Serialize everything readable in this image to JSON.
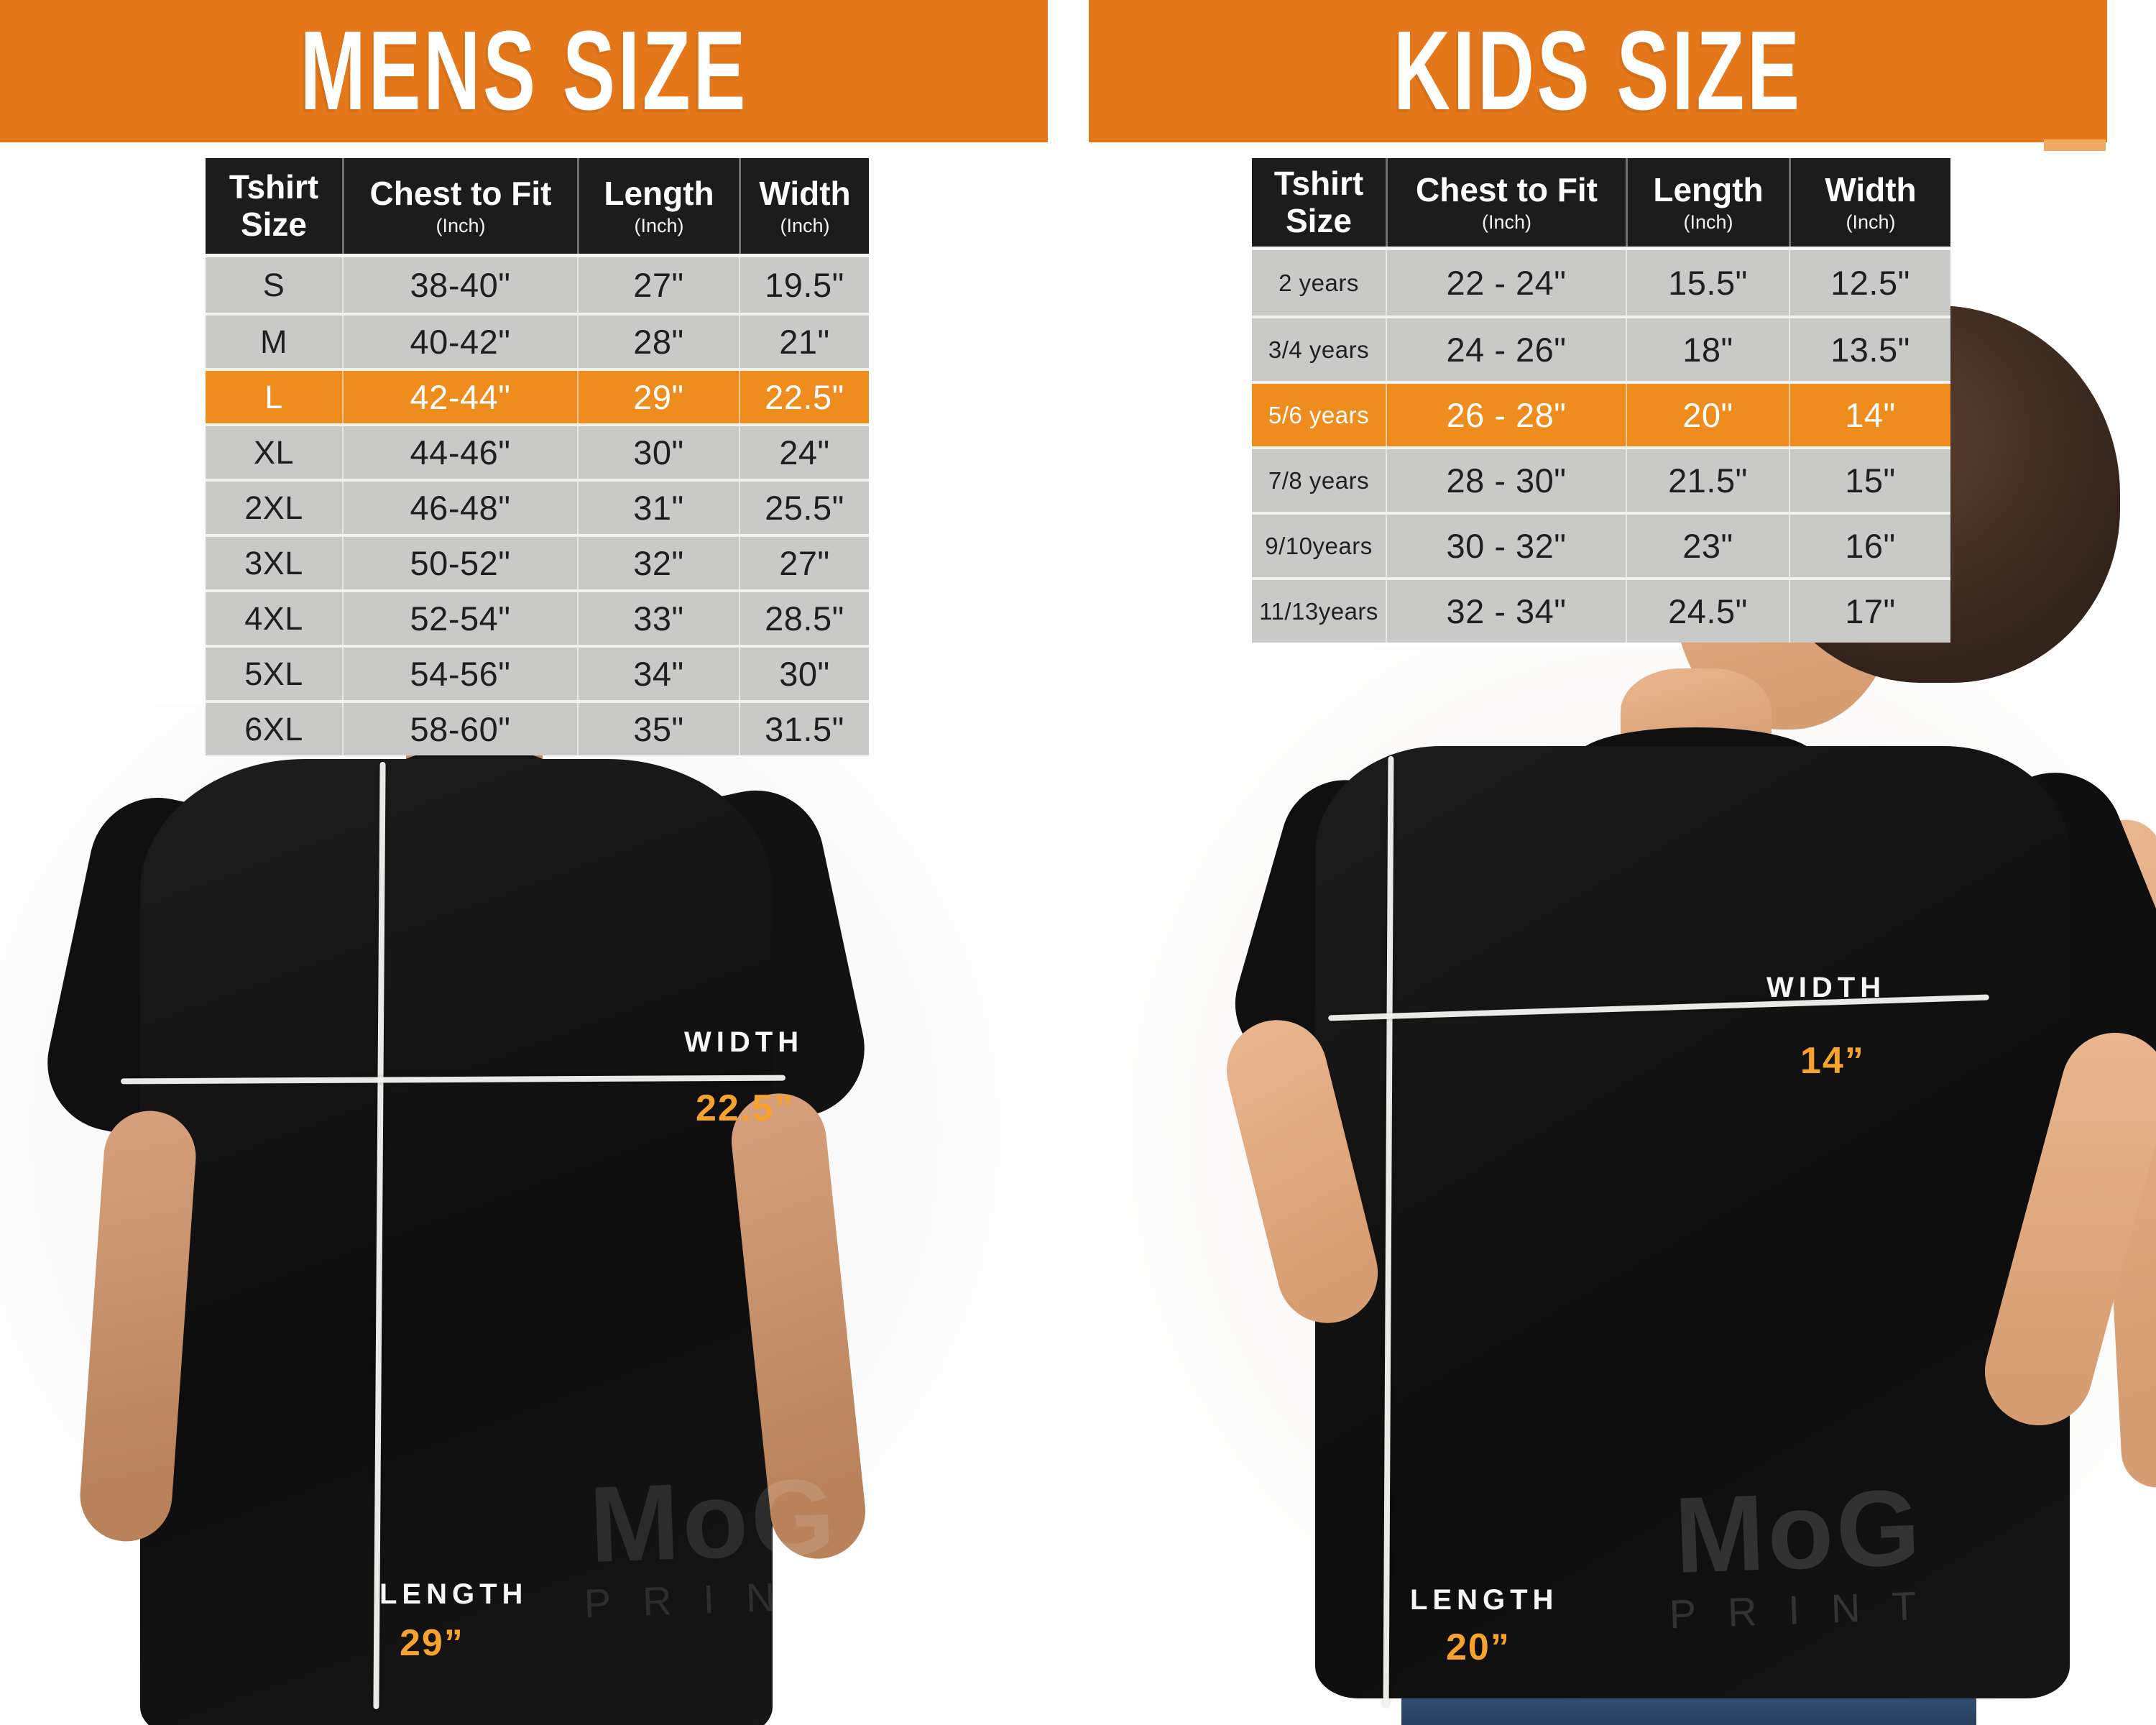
{
  "colors": {
    "banner_orange": "#e4771a",
    "highlight_row_orange": "#ee8c1e",
    "measurement_value_orange": "#f6a22c",
    "table_header_dark": "#1c1c1c",
    "table_row_gray": "#c9c9c8",
    "measurement_line_white": "#f4f2ee"
  },
  "mens": {
    "title": "MENS SIZE",
    "header": {
      "c0a": "Tshirt",
      "c0b": "Size",
      "c1": "Chest to Fit",
      "c1_sub": "(Inch)",
      "c2": "Length",
      "c2_sub": "(Inch)",
      "c3": "Width",
      "c3_sub": "(Inch)"
    },
    "rows": [
      {
        "size": "S",
        "chest": "38-40\"",
        "length": "27\"",
        "width": "19.5\""
      },
      {
        "size": "M",
        "chest": "40-42\"",
        "length": "28\"",
        "width": "21\""
      },
      {
        "size": "L",
        "chest": "42-44\"",
        "length": "29\"",
        "width": "22.5\""
      },
      {
        "size": "XL",
        "chest": "44-46\"",
        "length": "30\"",
        "width": "24\""
      },
      {
        "size": "2XL",
        "chest": "46-48\"",
        "length": "31\"",
        "width": "25.5\""
      },
      {
        "size": "3XL",
        "chest": "50-52\"",
        "length": "32\"",
        "width": "27\""
      },
      {
        "size": "4XL",
        "chest": "52-54\"",
        "length": "33\"",
        "width": "28.5\""
      },
      {
        "size": "5XL",
        "chest": "54-56\"",
        "length": "34\"",
        "width": "30\""
      },
      {
        "size": "6XL",
        "chest": "58-60\"",
        "length": "35\"",
        "width": "31.5\""
      }
    ],
    "highlighted_size": "L",
    "annotations": {
      "width_label": "WIDTH",
      "width_value": "22.5”",
      "length_label": "LENGTH",
      "length_value": "29”"
    },
    "watermark_line1": "MoG",
    "watermark_line2": "PRINT"
  },
  "kids": {
    "title": "KIDS SIZE",
    "header": {
      "c0a": "Tshirt",
      "c0b": "Size",
      "c1": "Chest to Fit",
      "c1_sub": "(Inch)",
      "c2": "Length",
      "c2_sub": "(Inch)",
      "c3": "Width",
      "c3_sub": "(Inch)"
    },
    "rows": [
      {
        "size": "2 years",
        "chest": "22 - 24\"",
        "length": "15.5\"",
        "width": "12.5\""
      },
      {
        "size": "3/4 years",
        "chest": "24 - 26\"",
        "length": "18\"",
        "width": "13.5\""
      },
      {
        "size": "5/6 years",
        "chest": "26 - 28\"",
        "length": "20\"",
        "width": "14\""
      },
      {
        "size": "7/8 years",
        "chest": "28 - 30\"",
        "length": "21.5\"",
        "width": "15\""
      },
      {
        "size": "9/10years",
        "chest": "30 - 32\"",
        "length": "23\"",
        "width": "16\""
      },
      {
        "size": "11/13years",
        "chest": "32 - 34\"",
        "length": "24.5\"",
        "width": "17\""
      }
    ],
    "highlighted_size": "5/6 years",
    "annotations": {
      "width_label": "WIDTH",
      "width_value": "14”",
      "length_label": "LENGTH",
      "length_value": "20”"
    },
    "watermark_line1": "MoG",
    "watermark_line2": "PRINT"
  },
  "chart_data": [
    {
      "type": "table",
      "title": "MENS SIZE",
      "columns": [
        "Tshirt Size",
        "Chest to Fit (Inch)",
        "Length (Inch)",
        "Width (Inch)"
      ],
      "rows": [
        [
          "S",
          "38-40\"",
          "27\"",
          "19.5\""
        ],
        [
          "M",
          "40-42\"",
          "28\"",
          "21\""
        ],
        [
          "L",
          "42-44\"",
          "29\"",
          "22.5\""
        ],
        [
          "XL",
          "44-46\"",
          "30\"",
          "24\""
        ],
        [
          "2XL",
          "46-48\"",
          "31\"",
          "25.5\""
        ],
        [
          "3XL",
          "50-52\"",
          "32\"",
          "27\""
        ],
        [
          "4XL",
          "52-54\"",
          "33\"",
          "28.5\""
        ],
        [
          "5XL",
          "54-56\"",
          "34\"",
          "30\""
        ],
        [
          "6XL",
          "58-60\"",
          "35\"",
          "31.5\""
        ]
      ],
      "highlighted_row": "L"
    },
    {
      "type": "table",
      "title": "KIDS SIZE",
      "columns": [
        "Tshirt Size",
        "Chest to Fit (Inch)",
        "Length (Inch)",
        "Width (Inch)"
      ],
      "rows": [
        [
          "2 years",
          "22 - 24\"",
          "15.5\"",
          "12.5\""
        ],
        [
          "3/4 years",
          "24 - 26\"",
          "18\"",
          "13.5\""
        ],
        [
          "5/6 years",
          "26 - 28\"",
          "20\"",
          "14\""
        ],
        [
          "7/8 years",
          "28 - 30\"",
          "21.5\"",
          "15\""
        ],
        [
          "9/10years",
          "30 - 32\"",
          "23\"",
          "16\""
        ],
        [
          "11/13years",
          "32 - 34\"",
          "24.5\"",
          "17\""
        ]
      ],
      "highlighted_row": "5/6 years"
    }
  ]
}
